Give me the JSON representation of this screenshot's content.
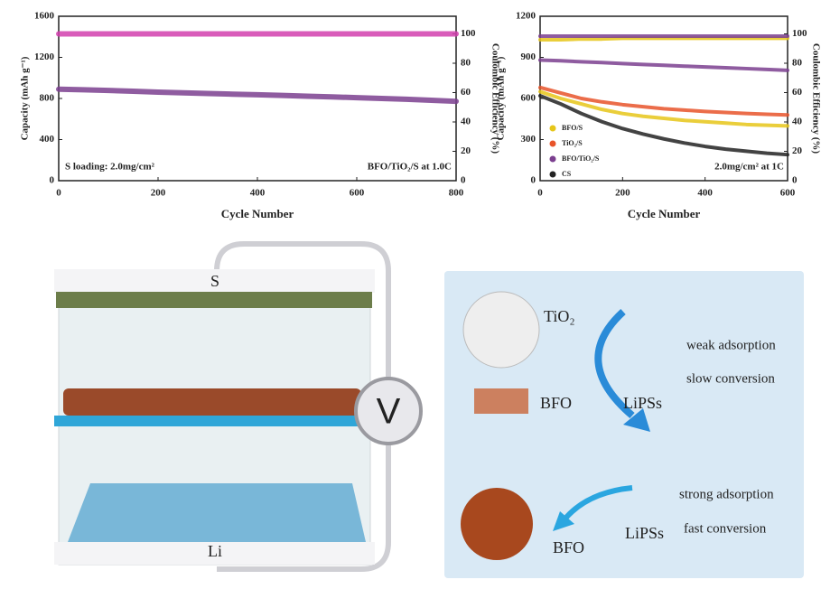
{
  "chart_data": [
    {
      "type": "line",
      "x_label": "Cycle Number",
      "y_label": "Capacity (mAh g⁻¹)",
      "y2_label": "Coulombic Efficiency (%)",
      "annotations": [
        "S loading: 2.0mg/cm²",
        "BFO/TiO₂/S at 1.0C"
      ],
      "x": [
        0,
        50,
        100,
        150,
        200,
        250,
        300,
        350,
        400,
        450,
        500,
        550,
        600,
        650,
        700,
        750,
        800
      ],
      "xlim": [
        0,
        800
      ],
      "xticks": [
        0,
        200,
        400,
        600,
        800
      ],
      "ylim": [
        0,
        1600
      ],
      "yticks": [
        0,
        400,
        800,
        1200,
        1600
      ],
      "y2lim": [
        0,
        112
      ],
      "y2ticks": [
        0,
        20,
        40,
        60,
        80,
        100
      ],
      "series": [
        {
          "color": "#7b3f8f",
          "values": [
            890,
            885,
            878,
            870,
            862,
            855,
            848,
            842,
            836,
            830,
            822,
            815,
            808,
            800,
            792,
            782,
            772
          ]
        },
        {
          "color": "#d23fae",
          "axis": "y2",
          "values": [
            100,
            100,
            100,
            100,
            100,
            100,
            100,
            100,
            100,
            100,
            100,
            100,
            100,
            100,
            100,
            100,
            100
          ]
        }
      ]
    },
    {
      "type": "line",
      "x_label": "Cycle Number",
      "y_label": "Capacity (mAh g⁻¹)",
      "y2_label": "Coulombic Efficiency (%)",
      "annotations": [
        "2.0mg/cm² at 1C"
      ],
      "x": [
        0,
        50,
        100,
        150,
        200,
        250,
        300,
        350,
        400,
        450,
        500,
        550,
        600
      ],
      "xlim": [
        0,
        600
      ],
      "xticks": [
        0,
        200,
        400,
        600
      ],
      "ylim": [
        0,
        1200
      ],
      "yticks": [
        0,
        300,
        600,
        900,
        1200
      ],
      "y2lim": [
        0,
        112
      ],
      "y2ticks": [
        0,
        20,
        40,
        60,
        80,
        100
      ],
      "legend": "left",
      "series": [
        {
          "name": "BFO/S",
          "color": "#e6c619",
          "values": [
            650,
            600,
            560,
            520,
            490,
            470,
            455,
            440,
            430,
            420,
            410,
            405,
            400
          ]
        },
        {
          "name": "TiO₂/S",
          "color": "#e8542a",
          "values": [
            680,
            640,
            600,
            575,
            555,
            540,
            525,
            515,
            505,
            498,
            490,
            485,
            480
          ]
        },
        {
          "name": "BFO/TiO₂/S",
          "color": "#7b3f8f",
          "values": [
            880,
            875,
            868,
            862,
            855,
            848,
            842,
            836,
            830,
            824,
            818,
            812,
            805
          ]
        },
        {
          "name": "CS",
          "color": "#222222",
          "values": [
            620,
            560,
            490,
            430,
            380,
            340,
            305,
            275,
            250,
            230,
            215,
            200,
            190
          ]
        },
        {
          "color": "#e6c619",
          "axis": "y2",
          "values": [
            96,
            96,
            96.5,
            96.5,
            97,
            97,
            97,
            97,
            97,
            97,
            97,
            97,
            97
          ]
        },
        {
          "color": "#7b3f8f",
          "axis": "y2",
          "values": [
            98.5,
            98.5,
            98.5,
            98.5,
            98.5,
            98.5,
            98.5,
            98.5,
            98.5,
            98.5,
            98.5,
            98.5,
            98.5
          ]
        }
      ]
    }
  ],
  "diagram": {
    "cell": {
      "top": "S",
      "bottom": "Li",
      "meter": "V"
    },
    "panel": {
      "tio2": "TiO₂",
      "bfo_top": "BFO",
      "lipss_top": "LiPSs",
      "weak": "weak adsorption",
      "slow": "slow conversion",
      "bfo_bottom": "BFO",
      "lipss_bottom": "LiPSs",
      "strong": "strong adsorption",
      "fast": "fast conversion"
    }
  }
}
